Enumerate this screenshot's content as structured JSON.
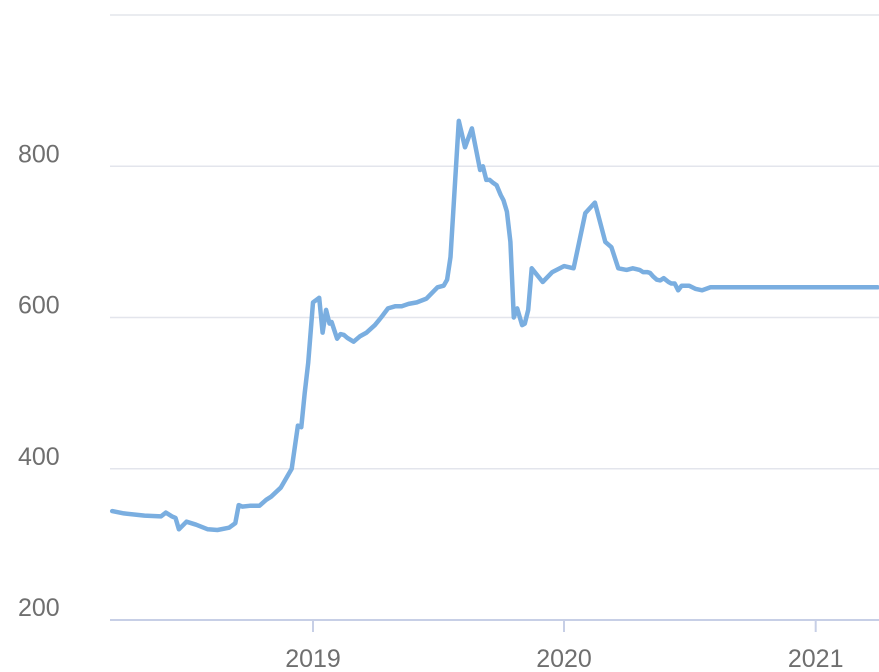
{
  "chart_data": {
    "type": "line",
    "title": "",
    "xlabel": "",
    "ylabel": "",
    "ylim": [
      200,
      1000
    ],
    "xlim": [
      "2018-03-15",
      "2021-04-01"
    ],
    "grid": true,
    "legend": "none",
    "y_ticks": [
      "200",
      "400",
      "600",
      "800"
    ],
    "x_ticks": [
      {
        "label": "2019",
        "date": "2019-01-01"
      },
      {
        "label": "2020",
        "date": "2020-01-01"
      },
      {
        "label": "2021",
        "date": "2021-01-01"
      }
    ],
    "colors": {
      "line": "#7aaee0",
      "grid": "#e3e5ec",
      "baseline": "#c7cfe6",
      "tick_text": "#6f6f6f"
    },
    "series": [
      {
        "x": [
          "2018-03-15",
          "2018-04-01",
          "2018-05-01",
          "2018-05-25",
          "2018-06-01",
          "2018-06-10",
          "2018-06-15",
          "2018-06-20",
          "2018-07-01",
          "2018-07-15",
          "2018-08-01",
          "2018-08-15",
          "2018-09-01",
          "2018-09-10",
          "2018-09-15",
          "2018-09-20",
          "2018-10-01",
          "2018-10-15",
          "2018-10-25",
          "2018-11-01",
          "2018-11-15",
          "2018-12-01",
          "2018-12-10",
          "2018-12-15",
          "2018-12-20",
          "2018-12-25",
          "2019-01-01",
          "2019-01-10",
          "2019-01-15",
          "2019-01-20",
          "2019-01-25",
          "2019-01-28",
          "2019-02-05",
          "2019-02-10",
          "2019-02-15",
          "2019-02-20",
          "2019-03-01",
          "2019-03-10",
          "2019-03-20",
          "2019-04-01",
          "2019-04-10",
          "2019-04-20",
          "2019-05-01",
          "2019-05-10",
          "2019-05-20",
          "2019-06-01",
          "2019-06-15",
          "2019-07-01",
          "2019-07-10",
          "2019-07-15",
          "2019-07-20",
          "2019-08-01",
          "2019-08-10",
          "2019-08-20",
          "2019-09-01",
          "2019-09-05",
          "2019-09-10",
          "2019-09-15",
          "2019-09-20",
          "2019-09-25",
          "2019-10-01",
          "2019-10-05",
          "2019-10-10",
          "2019-10-15",
          "2019-10-20",
          "2019-10-25",
          "2019-11-01",
          "2019-11-05",
          "2019-11-10",
          "2019-11-15",
          "2019-12-01",
          "2019-12-15",
          "2020-01-01",
          "2020-01-15",
          "2020-02-01",
          "2020-02-15",
          "2020-03-01",
          "2020-03-10",
          "2020-03-20",
          "2020-04-01",
          "2020-04-10",
          "2020-04-20",
          "2020-04-25",
          "2020-05-01",
          "2020-05-05",
          "2020-05-10",
          "2020-05-15",
          "2020-05-20",
          "2020-05-25",
          "2020-06-01",
          "2020-06-05",
          "2020-06-10",
          "2020-06-15",
          "2020-06-20",
          "2020-07-01",
          "2020-07-10",
          "2020-07-20",
          "2020-08-01",
          "2020-08-10",
          "2020-08-20",
          "2020-09-01",
          "2020-09-15",
          "2020-10-01",
          "2020-10-15",
          "2020-11-01",
          "2020-11-15",
          "2020-12-01",
          "2020-12-15",
          "2021-01-01",
          "2021-01-10",
          "2021-01-15",
          "2021-02-01",
          "2021-02-15",
          "2021-03-01",
          "2021-03-10",
          "2021-03-20",
          "2021-04-01"
        ],
        "y": [
          344,
          341,
          338,
          337,
          342,
          337,
          335,
          320,
          330,
          326,
          320,
          319,
          322,
          328,
          352,
          350,
          351,
          351,
          359,
          363,
          375,
          400,
          457,
          455,
          500,
          540,
          620,
          626,
          580,
          610,
          592,
          594,
          572,
          578,
          577,
          573,
          568,
          575,
          580,
          590,
          600,
          612,
          615,
          615,
          618,
          620,
          625,
          640,
          642,
          650,
          680,
          860,
          825,
          850,
          795,
          800,
          782,
          782,
          778,
          775,
          762,
          755,
          740,
          700,
          600,
          612,
          590,
          592,
          610,
          665,
          647,
          660,
          668,
          665,
          738,
          752,
          700,
          693,
          665,
          663,
          665,
          663,
          660,
          660,
          659,
          654,
          650,
          649,
          652,
          647,
          645,
          645,
          636,
          642,
          642,
          638,
          636,
          640,
          640,
          640,
          640,
          640,
          640,
          640,
          640,
          640,
          640,
          640,
          640,
          640,
          640,
          640,
          640,
          640,
          640,
          640,
          640
        ]
      }
    ]
  }
}
